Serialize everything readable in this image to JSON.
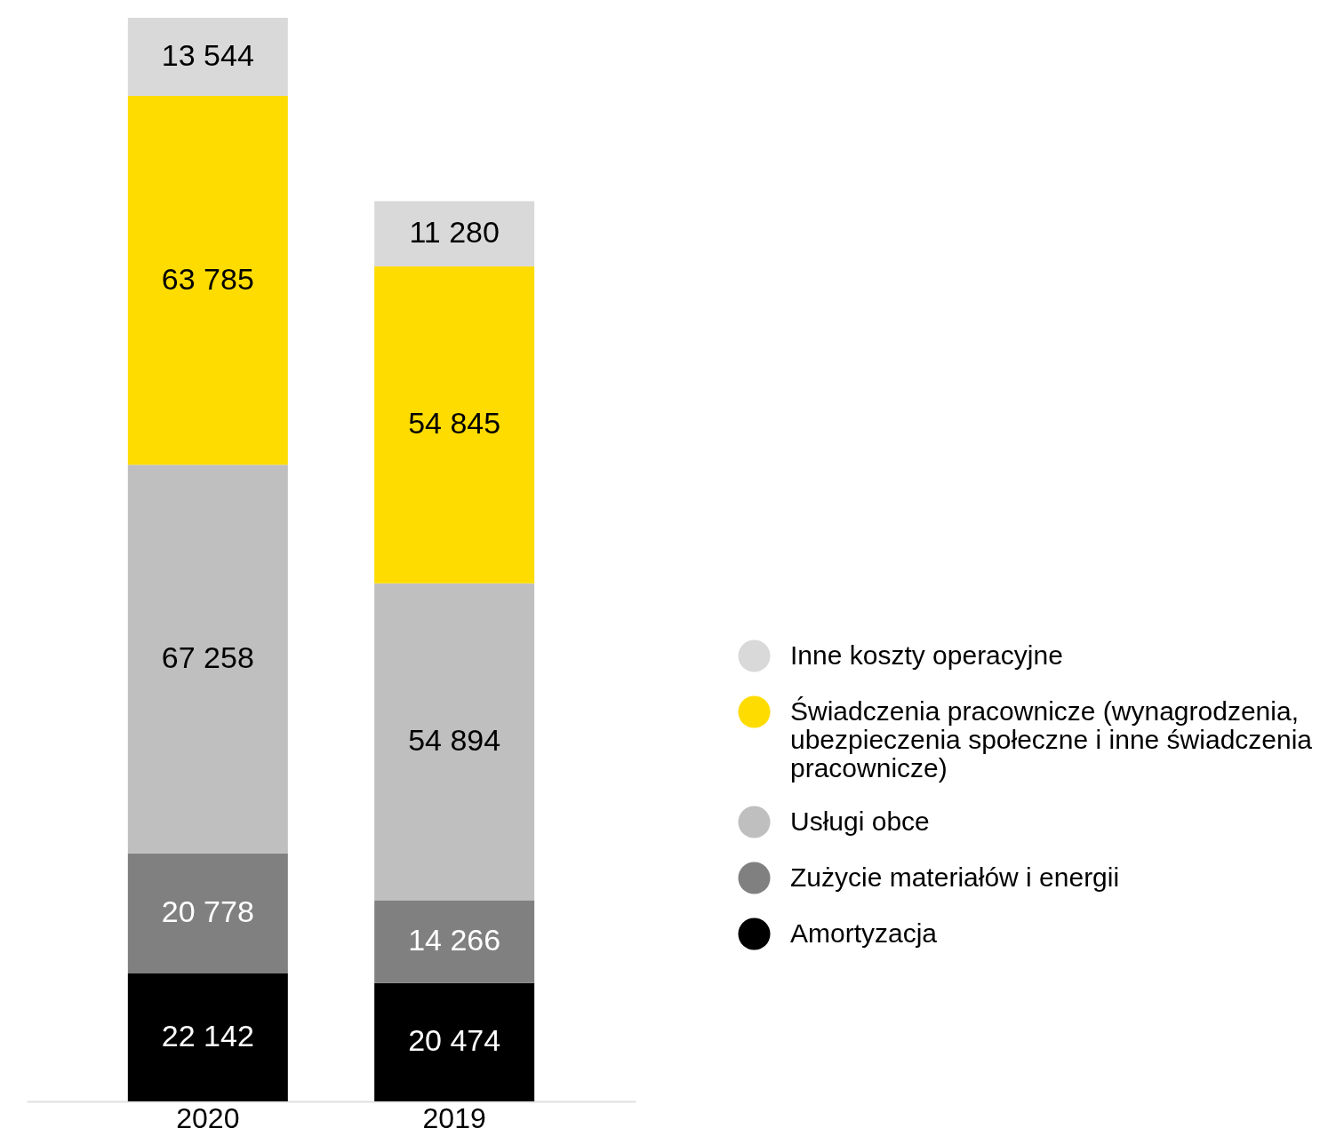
{
  "chart_data": {
    "type": "bar",
    "stacked": true,
    "data_labels": true,
    "legend": "right",
    "categories": [
      "2020",
      "2019"
    ],
    "series": [
      {
        "name": "Amortyzacja",
        "color": "#000000",
        "values": [
          22142,
          20474
        ]
      },
      {
        "name": "Zużycie materiałów i energii",
        "color": "#808080",
        "values": [
          20778,
          14266
        ]
      },
      {
        "name": "Usługi obce",
        "color": "#bfbfbf",
        "values": [
          67258,
          54894
        ]
      },
      {
        "name": "Świadczenia pracownicze (wynagrodzenia, ubezpieczenia społeczne i inne świadczenia pracownicze)",
        "color": "#ffdc00",
        "values": [
          63785,
          54845
        ]
      },
      {
        "name": "Inne koszty operacyjne",
        "color": "#d9d9d9",
        "values": [
          13544,
          11280
        ]
      }
    ]
  }
}
